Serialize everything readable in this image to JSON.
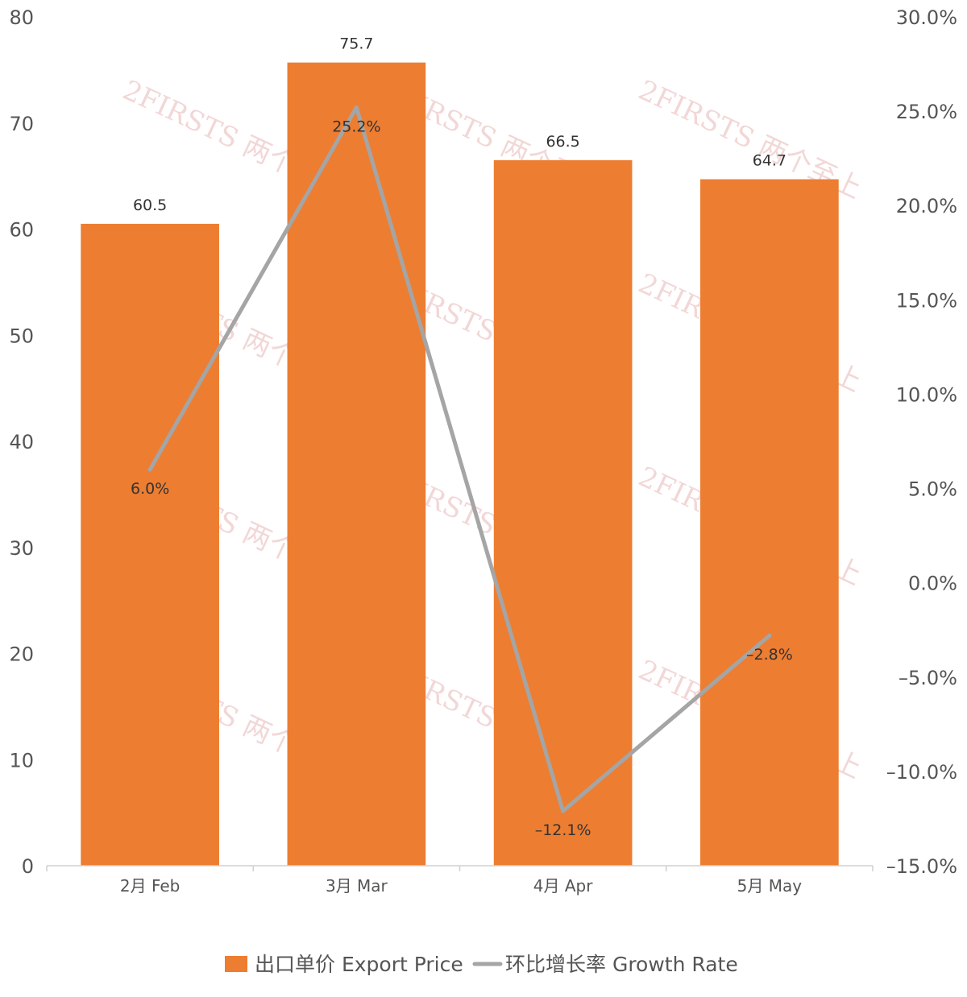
{
  "chart_data": {
    "type": "bar",
    "categories": [
      "2月 Feb",
      "3月 Mar",
      "4月 Apr",
      "5月 May"
    ],
    "series": [
      {
        "name": "出口单价 Export Price",
        "kind": "bar",
        "axis": "left",
        "color": "#ED7D31",
        "values": [
          60.5,
          75.7,
          66.5,
          64.7
        ],
        "labels": [
          "60.5",
          "75.7",
          "66.5",
          "64.7"
        ]
      },
      {
        "name": "环比增长率 Growth Rate",
        "kind": "line",
        "axis": "right",
        "color": "#A5A5A5",
        "values": [
          6.0,
          25.2,
          -12.1,
          -2.8
        ],
        "labels": [
          "6.0%",
          "25.2%",
          "–12.1%",
          "–2.8%"
        ]
      }
    ],
    "y_left": {
      "range": [
        0,
        80
      ],
      "ticks": [
        "0",
        "10",
        "20",
        "30",
        "40",
        "50",
        "60",
        "70",
        "80"
      ]
    },
    "y_right": {
      "range": [
        -15,
        30
      ],
      "ticks": [
        "–15.0%",
        "–10.0%",
        "–5.0%",
        "0.0%",
        "5.0%",
        "10.0%",
        "15.0%",
        "20.0%",
        "25.0%",
        "30.0%"
      ]
    },
    "grid": false,
    "legend": "bottom-center",
    "watermark": "2FIRSTS 两个至上"
  }
}
